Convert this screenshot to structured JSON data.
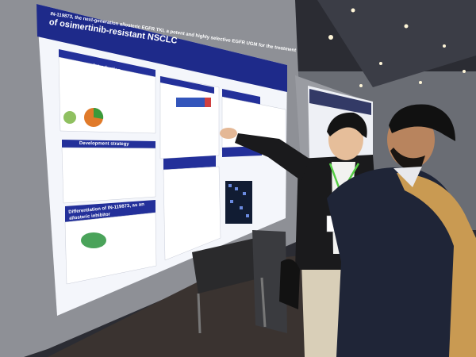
{
  "poster": {
    "title_line1": "IN-119873, the next-generation allosteric EGFR TKI, a potent and highly selective EGFR UGM for the treatment",
    "title_line2": "of osimertinib-resistant NSCLC",
    "sections": {
      "introduction": "Introduction",
      "development_strategy": "Development strategy",
      "differentiation": "Differentiation of IN-119873, as an allosteric inhibitor"
    }
  },
  "colors": {
    "poster_header": "#1e2a8a",
    "poster_body": "#f4f6fb",
    "lanyard": "#55cc44",
    "jacket": "#1a1a1c",
    "backpack": "#c99a52"
  }
}
